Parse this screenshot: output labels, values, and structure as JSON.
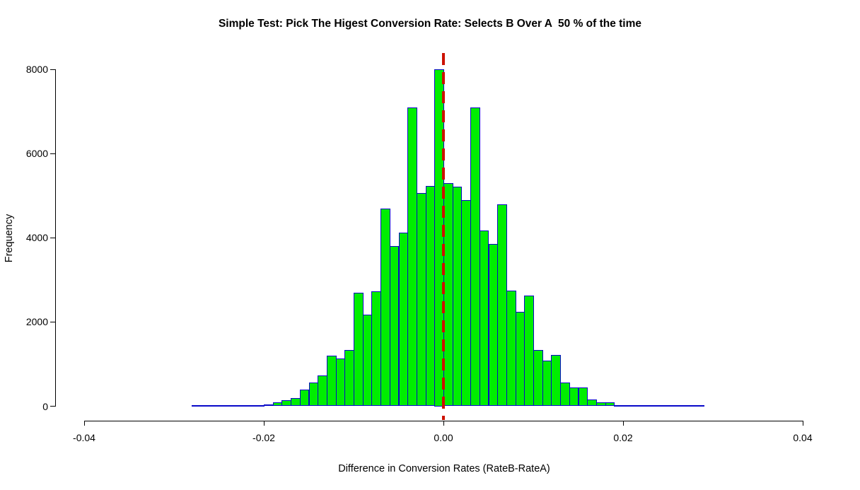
{
  "title": "Simple Test: Pick The Higest Conversion Rate: Selects B Over A  50 % of the time",
  "chart_data": {
    "type": "bar",
    "subtype": "histogram",
    "title": "Simple Test: Pick The Higest Conversion Rate: Selects B Over A  50 % of the time",
    "xlabel": "Difference in Conversion Rates (RateB-RateA)",
    "ylabel": "Frequency",
    "xlim": [
      -0.04,
      0.04
    ],
    "ylim": [
      0,
      8000
    ],
    "grid": false,
    "legend": "none",
    "bin_width": 0.001,
    "x_tick_values": [
      -0.04,
      -0.02,
      0.0,
      0.02,
      0.04
    ],
    "x_tick_labels": [
      "-0.04",
      "-0.02",
      "0.00",
      "0.02",
      "0.04"
    ],
    "y_tick_values": [
      0,
      2000,
      4000,
      6000,
      8000
    ],
    "y_tick_labels": [
      "0",
      "2000",
      "4000",
      "6000",
      "8000"
    ],
    "bin_left_edges": [
      -0.028,
      -0.027,
      -0.026,
      -0.025,
      -0.024,
      -0.023,
      -0.022,
      -0.021,
      -0.02,
      -0.019,
      -0.018,
      -0.017,
      -0.016,
      -0.015,
      -0.014,
      -0.013,
      -0.012,
      -0.011,
      -0.01,
      -0.009,
      -0.008,
      -0.007,
      -0.006,
      -0.005,
      -0.004,
      -0.003,
      -0.002,
      -0.001,
      0.0,
      0.001,
      0.002,
      0.003,
      0.004,
      0.005,
      0.006,
      0.007,
      0.008,
      0.009,
      0.01,
      0.011,
      0.012,
      0.013,
      0.014,
      0.015,
      0.016,
      0.017,
      0.018,
      0.019,
      0.02,
      0.021,
      0.022,
      0.023,
      0.024,
      0.025,
      0.026,
      0.027,
      0.028
    ],
    "frequencies": [
      5,
      5,
      8,
      8,
      10,
      12,
      18,
      25,
      50,
      100,
      150,
      200,
      390,
      560,
      730,
      1200,
      1140,
      1330,
      2700,
      2170,
      2730,
      4700,
      3800,
      4130,
      7100,
      5060,
      5230,
      8000,
      5300,
      5220,
      4900,
      7090,
      4170,
      3850,
      4800,
      2740,
      2240,
      2630,
      1340,
      1080,
      1210,
      560,
      450,
      440,
      160,
      100,
      90,
      25,
      10,
      25,
      10,
      8,
      8,
      5,
      5,
      5,
      5
    ],
    "reference_line": {
      "x": 0.0,
      "style": "dashed",
      "color": "#cc1100"
    },
    "colors": {
      "bar_fill": "#00ee00",
      "bar_border": "#0808c8",
      "axis": "#000000",
      "background": "#ffffff"
    }
  }
}
